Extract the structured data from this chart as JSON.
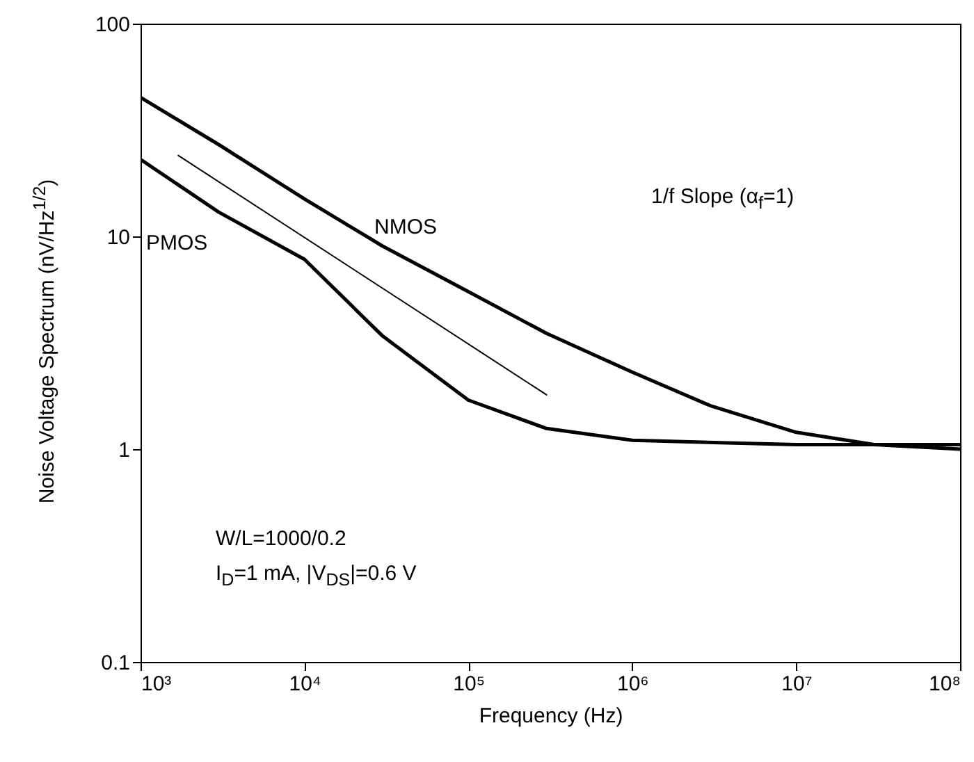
{
  "chart_data": {
    "type": "line",
    "xlabel": "Frequency (Hz)",
    "ylabel": "Noise Voltage Spectrum (nV/Hz$^{1/2}$)",
    "log": "xy",
    "grid": false,
    "line_style": "solid",
    "marker": "none",
    "xlim": [
      1000,
      100000000
    ],
    "ylim": [
      0.1,
      100
    ],
    "xticks": [
      {
        "value": 1000,
        "label": "10³"
      },
      {
        "value": 10000,
        "label": "10⁴"
      },
      {
        "value": 100000,
        "label": "10⁵"
      },
      {
        "value": 1000000,
        "label": "10⁶"
      },
      {
        "value": 10000000,
        "label": "10⁷"
      },
      {
        "value": 100000000,
        "label": "10⁸"
      }
    ],
    "yticks": [
      0.1,
      1,
      10,
      100
    ],
    "series": [
      {
        "name": "NMOS",
        "color": "#000000",
        "x": [
          1000,
          3000,
          10000,
          30000,
          100000,
          300000,
          1000000,
          3000000,
          10000000,
          30000000,
          100000000
        ],
        "values": [
          45,
          27,
          15,
          9,
          5.5,
          3.5,
          2.3,
          1.6,
          1.2,
          1.05,
          1.0
        ]
      },
      {
        "name": "PMOS",
        "color": "#000000",
        "x": [
          1000,
          3000,
          10000,
          30000,
          100000,
          300000,
          1000000,
          10000000,
          100000000
        ],
        "values": [
          23,
          13,
          7.8,
          3.4,
          1.7,
          1.25,
          1.1,
          1.05,
          1.05
        ]
      },
      {
        "color": "#000000",
        "x": [
          1700,
          300000
        ],
        "values": [
          24,
          1.8
        ]
      }
    ],
    "annotations": [
      "1/f Slope (α$_{f}$=1)",
      "W/L=1000/0.2",
      "I$_{D}$=1 mA, |V$_{DS}$|=0.6 V"
    ]
  }
}
